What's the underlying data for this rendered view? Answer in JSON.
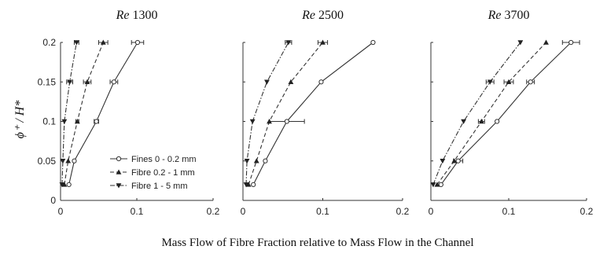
{
  "chart_data": {
    "type": "line",
    "xlabel": "Mass Flow of Fibre Fraction relative to Mass Flow in the Channel",
    "ylabel": "ϕ⁺ / H*",
    "xlim": [
      0,
      0.2
    ],
    "ylim": [
      0,
      0.2
    ],
    "x_ticks": [
      "0",
      "0.1",
      "0.2"
    ],
    "y_ticks": [
      "0",
      "0.05",
      "0.1",
      "0.15",
      "0.2"
    ],
    "legend_position": "inside lower-right of first panel",
    "legend": [
      "Fines 0 - 0.2 mm",
      "Fibre 0.2 - 1 mm",
      "Fibre 1 - 5 mm"
    ],
    "panels": [
      {
        "title_label": "Re",
        "title_value": "1300",
        "series": [
          {
            "name": "Fines 0 - 0.2 mm",
            "marker": "circle",
            "dash": "solid",
            "points": [
              [
                0.011,
                0.02
              ],
              [
                0.018,
                0.05
              ],
              [
                0.047,
                0.1
              ],
              [
                0.07,
                0.15
              ],
              [
                0.101,
                0.2
              ]
            ],
            "xerr": [
              0,
              0,
              0.003,
              0.005,
              0.008
            ]
          },
          {
            "name": "Fibre 0.2 - 1 mm",
            "marker": "triangle-up",
            "dash": "dashed",
            "points": [
              [
                0.005,
                0.02
              ],
              [
                0.01,
                0.05
              ],
              [
                0.022,
                0.1
              ],
              [
                0.035,
                0.15
              ],
              [
                0.056,
                0.2
              ]
            ],
            "xerr": [
              0,
              0,
              0.002,
              0.005,
              0.006
            ]
          },
          {
            "name": "Fibre 1 - 5 mm",
            "marker": "triangle-down",
            "dash": "dashdot",
            "points": [
              [
                0.002,
                0.02
              ],
              [
                0.003,
                0.05
              ],
              [
                0.005,
                0.1
              ],
              [
                0.012,
                0.15
              ],
              [
                0.021,
                0.2
              ]
            ],
            "xerr": [
              0,
              0,
              0,
              0.004,
              0.003
            ]
          }
        ]
      },
      {
        "title_label": "Re",
        "title_value": "2500",
        "series": [
          {
            "name": "Fines 0 - 0.2 mm",
            "marker": "circle",
            "dash": "solid",
            "points": [
              [
                0.013,
                0.02
              ],
              [
                0.028,
                0.05
              ],
              [
                0.055,
                0.1
              ],
              [
                0.098,
                0.15
              ],
              [
                0.163,
                0.2
              ]
            ],
            "xerr": [
              0,
              0,
              0.022,
              0,
              0
            ]
          },
          {
            "name": "Fibre 0.2 - 1 mm",
            "marker": "triangle-up",
            "dash": "dashed",
            "points": [
              [
                0.007,
                0.02
              ],
              [
                0.017,
                0.05
              ],
              [
                0.033,
                0.1
              ],
              [
                0.06,
                0.15
              ],
              [
                0.1,
                0.2
              ]
            ],
            "xerr": [
              0,
              0,
              0,
              0,
              0.006
            ]
          },
          {
            "name": "Fibre 1 - 5 mm",
            "marker": "triangle-down",
            "dash": "dashdot",
            "points": [
              [
                0.004,
                0.02
              ],
              [
                0.005,
                0.05
              ],
              [
                0.012,
                0.1
              ],
              [
                0.03,
                0.15
              ],
              [
                0.057,
                0.2
              ]
            ],
            "xerr": [
              0,
              0,
              0,
              0,
              0.004
            ]
          }
        ]
      },
      {
        "title_label": "Re",
        "title_value": "3700",
        "series": [
          {
            "name": "Fines 0 - 0.2 mm",
            "marker": "circle",
            "dash": "solid",
            "points": [
              [
                0.013,
                0.02
              ],
              [
                0.035,
                0.05
              ],
              [
                0.085,
                0.1
              ],
              [
                0.128,
                0.15
              ],
              [
                0.18,
                0.2
              ]
            ],
            "xerr": [
              0,
              0.006,
              0,
              0.005,
              0.011
            ]
          },
          {
            "name": "Fibre 0.2 - 1 mm",
            "marker": "triangle-up",
            "dash": "dashed",
            "points": [
              [
                0.008,
                0.02
              ],
              [
                0.03,
                0.05
              ],
              [
                0.065,
                0.1
              ],
              [
                0.1,
                0.15
              ],
              [
                0.148,
                0.2
              ]
            ],
            "xerr": [
              0,
              0,
              0.004,
              0.006,
              0
            ]
          },
          {
            "name": "Fibre 1 - 5 mm",
            "marker": "triangle-down",
            "dash": "dashdot",
            "points": [
              [
                0.003,
                0.02
              ],
              [
                0.015,
                0.05
              ],
              [
                0.042,
                0.1
              ],
              [
                0.076,
                0.15
              ],
              [
                0.115,
                0.2
              ]
            ],
            "xerr": [
              0,
              0,
              0,
              0.005,
              0
            ]
          }
        ]
      }
    ]
  }
}
